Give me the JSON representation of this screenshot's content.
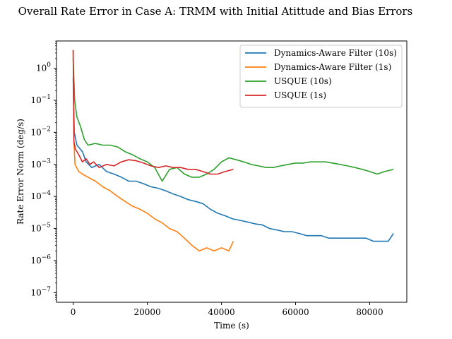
{
  "chart_data": {
    "type": "line",
    "title": "Overall Rate Error in Case A: TRMM with Initial Atittude and Bias Errors",
    "xlabel": "Time (s)",
    "ylabel": "Rate Error Norm (deg/s)",
    "xlim": [
      -4500,
      90000
    ],
    "ylim_log10": [
      -7.3,
      0.85
    ],
    "yscale": "log",
    "xticks": [
      0,
      20000,
      40000,
      60000,
      80000
    ],
    "xtick_labels": [
      "0",
      "20000",
      "40000",
      "60000",
      "80000"
    ],
    "yticks_log10": [
      0,
      -1,
      -2,
      -3,
      -4,
      -5,
      -6,
      -7
    ],
    "ytick_labels": [
      "10^0",
      "10^-1",
      "10^-2",
      "10^-3",
      "10^-4",
      "10^-5",
      "10^-6",
      "10^-7"
    ],
    "grid": false,
    "legend_position": "top-right",
    "series": [
      {
        "name": "Dynamics-Aware Filter (10s)",
        "color": "#1f77b4",
        "points": [
          [
            0,
            0.5
          ],
          [
            300,
            0.01
          ],
          [
            1000,
            0.004
          ],
          [
            2500,
            0.0025
          ],
          [
            3500,
            0.0012
          ],
          [
            5000,
            0.0008
          ],
          [
            7000,
            0.001
          ],
          [
            9000,
            0.0006
          ],
          [
            11000,
            0.0005
          ],
          [
            13000,
            0.0004
          ],
          [
            15000,
            0.0003
          ],
          [
            17000,
            0.0003
          ],
          [
            19000,
            0.00025
          ],
          [
            21000,
            0.0002
          ],
          [
            23000,
            0.00018
          ],
          [
            25000,
            0.00015
          ],
          [
            27000,
            0.00012
          ],
          [
            29000,
            0.0001
          ],
          [
            31000,
            8e-05
          ],
          [
            33000,
            7e-05
          ],
          [
            35000,
            6e-05
          ],
          [
            37000,
            4e-05
          ],
          [
            39000,
            3e-05
          ],
          [
            41000,
            2.5e-05
          ],
          [
            43000,
            2e-05
          ],
          [
            45000,
            1.8e-05
          ],
          [
            47000,
            1.6e-05
          ],
          [
            49000,
            1.4e-05
          ],
          [
            51000,
            1.3e-05
          ],
          [
            53000,
            1e-05
          ],
          [
            55000,
            9e-06
          ],
          [
            57000,
            8e-06
          ],
          [
            59000,
            8e-06
          ],
          [
            61000,
            7e-06
          ],
          [
            63000,
            6e-06
          ],
          [
            65000,
            6e-06
          ],
          [
            67000,
            6e-06
          ],
          [
            69000,
            5e-06
          ],
          [
            71000,
            5e-06
          ],
          [
            73000,
            5e-06
          ],
          [
            75000,
            5e-06
          ],
          [
            77000,
            5e-06
          ],
          [
            79000,
            5e-06
          ],
          [
            81000,
            4e-06
          ],
          [
            83000,
            4e-06
          ],
          [
            85000,
            4e-06
          ],
          [
            86400,
            7e-06
          ]
        ]
      },
      {
        "name": "Dynamics-Aware Filter (1s)",
        "color": "#ff7f0e",
        "points": [
          [
            0,
            3.5
          ],
          [
            200,
            0.005
          ],
          [
            500,
            0.001
          ],
          [
            1500,
            0.0006
          ],
          [
            2500,
            0.0005
          ],
          [
            4000,
            0.0004
          ],
          [
            6000,
            0.0003
          ],
          [
            8000,
            0.0002
          ],
          [
            10000,
            0.00015
          ],
          [
            12000,
            0.0001
          ],
          [
            14000,
            7e-05
          ],
          [
            16000,
            5e-05
          ],
          [
            18000,
            4e-05
          ],
          [
            20000,
            3e-05
          ],
          [
            22000,
            2e-05
          ],
          [
            24000,
            1.5e-05
          ],
          [
            26000,
            1e-05
          ],
          [
            28000,
            8e-06
          ],
          [
            30000,
            5e-06
          ],
          [
            32000,
            3e-06
          ],
          [
            34000,
            2e-06
          ],
          [
            36000,
            2.5e-06
          ],
          [
            38000,
            2e-06
          ],
          [
            40000,
            2.5e-06
          ],
          [
            42000,
            2e-06
          ],
          [
            43200,
            4e-06
          ]
        ]
      },
      {
        "name": "USQUE (10s)",
        "color": "#2ca02c",
        "points": [
          [
            0,
            2
          ],
          [
            400,
            0.1
          ],
          [
            1000,
            0.03
          ],
          [
            2000,
            0.015
          ],
          [
            3000,
            0.006
          ],
          [
            4000,
            0.004
          ],
          [
            6000,
            0.0045
          ],
          [
            8000,
            0.004
          ],
          [
            10000,
            0.004
          ],
          [
            12000,
            0.0035
          ],
          [
            14000,
            0.0025
          ],
          [
            16000,
            0.002
          ],
          [
            18000,
            0.0015
          ],
          [
            20000,
            0.0012
          ],
          [
            22000,
            0.0008
          ],
          [
            24000,
            0.0003
          ],
          [
            26000,
            0.0007
          ],
          [
            28000,
            0.0008
          ],
          [
            30000,
            0.0005
          ],
          [
            32000,
            0.0004
          ],
          [
            34000,
            0.0004
          ],
          [
            36000,
            0.0005
          ],
          [
            38000,
            0.0007
          ],
          [
            40000,
            0.0012
          ],
          [
            42000,
            0.0016
          ],
          [
            44000,
            0.0014
          ],
          [
            46000,
            0.0012
          ],
          [
            48000,
            0.001
          ],
          [
            50000,
            0.0009
          ],
          [
            52000,
            0.0008
          ],
          [
            54000,
            0.0008
          ],
          [
            56000,
            0.0009
          ],
          [
            58000,
            0.001
          ],
          [
            60000,
            0.0011
          ],
          [
            62000,
            0.0011
          ],
          [
            64000,
            0.0012
          ],
          [
            66000,
            0.0012
          ],
          [
            68000,
            0.0012
          ],
          [
            70000,
            0.0011
          ],
          [
            72000,
            0.001
          ],
          [
            74000,
            0.0009
          ],
          [
            76000,
            0.0008
          ],
          [
            78000,
            0.0007
          ],
          [
            80000,
            0.0006
          ],
          [
            82000,
            0.0005
          ],
          [
            84000,
            0.0006
          ],
          [
            86400,
            0.0007
          ]
        ]
      },
      {
        "name": "USQUE (1s)",
        "color": "#d62728",
        "points": [
          [
            0,
            3.7
          ],
          [
            200,
            0.005
          ],
          [
            600,
            0.003
          ],
          [
            1500,
            0.002
          ],
          [
            2500,
            0.0012
          ],
          [
            3500,
            0.0015
          ],
          [
            4500,
            0.001
          ],
          [
            5500,
            0.0012
          ],
          [
            7000,
            0.0008
          ],
          [
            9000,
            0.001
          ],
          [
            11000,
            0.0009
          ],
          [
            13000,
            0.0012
          ],
          [
            15000,
            0.0014
          ],
          [
            17000,
            0.0013
          ],
          [
            19000,
            0.0011
          ],
          [
            21000,
            0.0009
          ],
          [
            23000,
            0.0008
          ],
          [
            25000,
            0.0009
          ],
          [
            27000,
            0.0008
          ],
          [
            29000,
            0.0008
          ],
          [
            31000,
            0.0007
          ],
          [
            33000,
            0.0007
          ],
          [
            35000,
            0.0006
          ],
          [
            37000,
            0.0005
          ],
          [
            39000,
            0.0005
          ],
          [
            41000,
            0.0006
          ],
          [
            43200,
            0.0007
          ]
        ]
      }
    ]
  }
}
